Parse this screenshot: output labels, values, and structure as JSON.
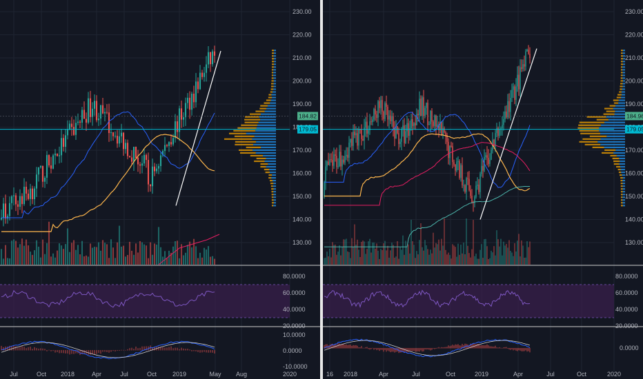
{
  "colors": {
    "background": "#131722",
    "grid": "#1f2431",
    "up": "#26a69a",
    "down": "#ef5350",
    "ma_blue": "#2962ff",
    "ma_orange": "#ffb74d",
    "ma_red": "#e91e63",
    "ma_teal": "#4db6ac",
    "rsi_band": "#3a1f4d",
    "rsi_line": "#7e57c2",
    "hline": "#00bcd4",
    "trendline": "#ffffff",
    "vp_up": "#2196f3",
    "vp_down": "#f7a600"
  },
  "left_chart": {
    "price_axis": [
      "230.00",
      "220.00",
      "210.00",
      "200.00",
      "190.00",
      "180.00",
      "170.00",
      "160.00",
      "150.00",
      "140.00",
      "130.00"
    ],
    "price_tags": {
      "current": "184.82",
      "level": "179.05"
    },
    "rsi_axis": [
      "80.0000",
      "60.0000",
      "40.0000",
      "20.0000"
    ],
    "macd_axis": [
      "10.0000",
      "0.0000",
      "-10.0000"
    ],
    "time_axis": [
      "Jul",
      "Oct",
      "2018",
      "Apr",
      "Jul",
      "Oct",
      "2019",
      "May",
      "Aug",
      "2020"
    ]
  },
  "right_chart": {
    "price_axis": [
      "230.00",
      "220.00",
      "210.00",
      "200.00",
      "190.00",
      "180.00",
      "170.00",
      "160.00",
      "150.00",
      "140.00",
      "130.00"
    ],
    "price_tags": {
      "current": "184.96",
      "level": "179.05"
    },
    "rsi_axis": [
      "80.0000",
      "60.0000",
      "40.0000",
      "20.0000"
    ],
    "macd_axis": [
      "0.0000"
    ],
    "time_axis": [
      "16",
      "2018",
      "Apr",
      "Jul",
      "Oct",
      "2019",
      "Apr",
      "Jul",
      "Oct",
      "2020"
    ]
  }
}
